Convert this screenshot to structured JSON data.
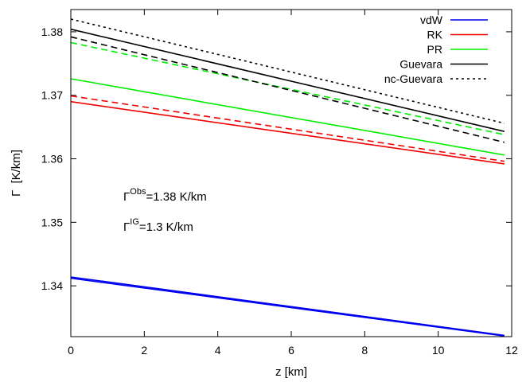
{
  "chart_data": {
    "type": "line",
    "xlabel": "z [km]",
    "ylabel_symbol": "Γ",
    "ylabel_unit": "[K/km]",
    "xlim": [
      0,
      12
    ],
    "ylim": [
      1.332,
      1.3835
    ],
    "xticks": [
      0,
      2,
      4,
      6,
      8,
      10,
      12
    ],
    "yticks": [
      1.34,
      1.35,
      1.36,
      1.37,
      1.38
    ],
    "grid": false,
    "legend_position": "top-right",
    "series": [
      {
        "name": "vdW",
        "color": "#0000ee",
        "dash": "solid",
        "x": [
          0,
          11.8
        ],
        "y": [
          1.3414,
          1.3322
        ]
      },
      {
        "name": "",
        "color": "#0000ee",
        "dash": "solid",
        "x": [
          0,
          11.8
        ],
        "y": [
          1.3412,
          1.3321
        ]
      },
      {
        "name": "RK",
        "color": "#ee0000",
        "dash": "solid",
        "x": [
          0,
          11.8
        ],
        "y": [
          1.369,
          1.3592
        ]
      },
      {
        "name": "",
        "color": "#ee0000",
        "dash": "dashed",
        "x": [
          0,
          11.8
        ],
        "y": [
          1.3699,
          1.3596
        ]
      },
      {
        "name": "PR",
        "color": "#00ee00",
        "dash": "solid",
        "x": [
          0,
          11.8
        ],
        "y": [
          1.3726,
          1.3606
        ]
      },
      {
        "name": "",
        "color": "#00ee00",
        "dash": "dashed",
        "x": [
          0,
          11.8
        ],
        "y": [
          1.3783,
          1.3638
        ]
      },
      {
        "name": "Guevara",
        "color": "#000000",
        "dash": "solid",
        "x": [
          0,
          11.8
        ],
        "y": [
          1.3804,
          1.3643
        ]
      },
      {
        "name": "",
        "color": "#000000",
        "dash": "dashed",
        "x": [
          0,
          11.8
        ],
        "y": [
          1.3792,
          1.3626
        ]
      },
      {
        "name": "nc-Guevara",
        "color": "#000000",
        "dash": "dotted",
        "x": [
          0,
          11.8
        ],
        "y": [
          1.382,
          1.3656
        ]
      }
    ],
    "annotations": [
      {
        "symbol": "Γ",
        "superscript": "Obs",
        "text": "=1.38 K/km"
      },
      {
        "symbol": "Γ",
        "superscript": "IG",
        "text": "=1.3 K/km"
      }
    ]
  }
}
